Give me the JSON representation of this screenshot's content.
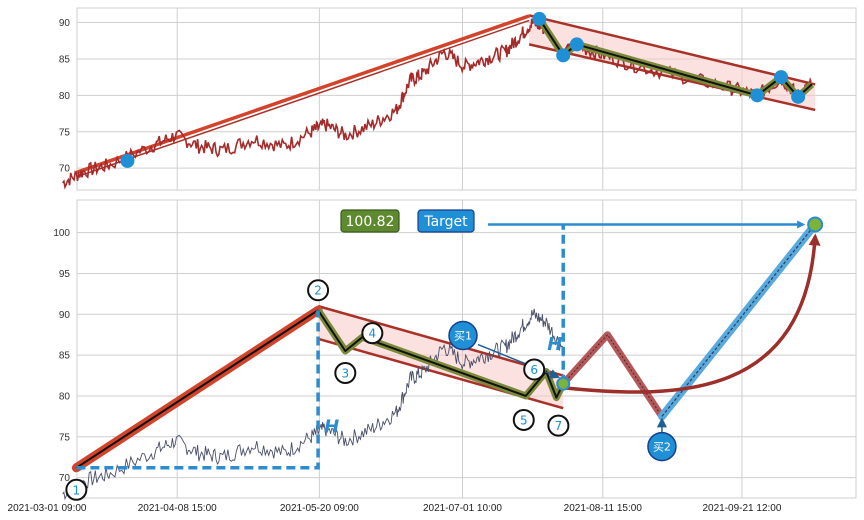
{
  "chart_data": [
    {
      "type": "line",
      "panel": "upper",
      "title": "",
      "xlabel": "",
      "ylabel": "",
      "ylim": [
        67,
        92
      ],
      "yticks": [
        70,
        75,
        80,
        85,
        90
      ],
      "grid": true,
      "series_color": "#a52a2a",
      "channel": {
        "upper_start": [
          "2021-07-21",
          91
        ],
        "upper_end": [
          "2021-10-13",
          81.5
        ],
        "lower_start": [
          "2021-07-21",
          87
        ],
        "lower_end": [
          "2021-10-13",
          78
        ]
      },
      "trend_line": {
        "from": [
          "2021-03-10",
          69
        ],
        "to": [
          "2021-07-21",
          90.5
        ]
      },
      "pivot_points": [
        {
          "x": "2021-03-25",
          "y": 71
        },
        {
          "x": "2021-07-24",
          "y": 90.5
        },
        {
          "x": "2021-07-31",
          "y": 85.5
        },
        {
          "x": "2021-08-04",
          "y": 87
        },
        {
          "x": "2021-09-26",
          "y": 80
        },
        {
          "x": "2021-10-03",
          "y": 82.5
        },
        {
          "x": "2021-10-08",
          "y": 79.8
        }
      ],
      "zigzag": [
        {
          "x": "2021-07-24",
          "y": 90.5
        },
        {
          "x": "2021-07-31",
          "y": 85.5
        },
        {
          "x": "2021-08-04",
          "y": 87
        },
        {
          "x": "2021-09-26",
          "y": 80
        },
        {
          "x": "2021-10-03",
          "y": 82.5
        },
        {
          "x": "2021-10-08",
          "y": 79.8
        },
        {
          "x": "2021-10-12",
          "y": 81.5
        }
      ]
    },
    {
      "type": "line",
      "panel": "lower",
      "title": "",
      "xlabel": "",
      "ylabel": "",
      "ylim": [
        67.5,
        104
      ],
      "yticks": [
        70,
        75,
        80,
        85,
        90,
        95,
        100
      ],
      "xticks": [
        "2021-03-01 09:00",
        "2021-04-08 15:00",
        "2021-05-20 09:00",
        "2021-07-01 10:00",
        "2021-08-11 15:00",
        "2021-09-21 12:00"
      ],
      "grid": true,
      "series_color": "#4a4f6a",
      "target_value": "100.82",
      "target_label": "Target",
      "h_label": "H",
      "buy_labels": [
        "买1",
        "买2"
      ],
      "pattern_points": [
        {
          "label": "1",
          "x": "2021-03-10",
          "y": 71.2
        },
        {
          "label": "2",
          "x": "2021-05-20",
          "y": 90.5
        },
        {
          "label": "3",
          "x": "2021-05-28",
          "y": 85.5
        },
        {
          "label": "4",
          "x": "2021-06-02",
          "y": 87.2
        },
        {
          "label": "5",
          "x": "2021-07-20",
          "y": 80
        },
        {
          "label": "6",
          "x": "2021-07-26",
          "y": 83
        },
        {
          "label": "7",
          "x": "2021-07-29",
          "y": 79.8
        }
      ],
      "breakout": {
        "x": "2021-07-31",
        "y": 81.5
      },
      "projection": [
        {
          "x": "2021-07-31",
          "y": 81.5
        },
        {
          "x": "2021-08-13",
          "y": 87.5
        },
        {
          "x": "2021-08-29",
          "y": 77.5
        },
        {
          "x": "2021-10-13",
          "y": 101
        }
      ],
      "target_point": {
        "x": "2021-10-13",
        "y": 101
      },
      "buy1_point": {
        "x": "2021-07-31",
        "y": 82
      },
      "buy2_point": {
        "x": "2021-08-29",
        "y": 77.5
      }
    }
  ]
}
